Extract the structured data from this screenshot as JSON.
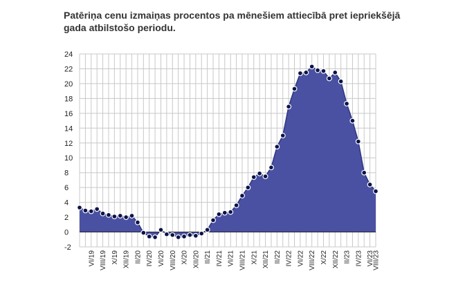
{
  "chart_data": {
    "type": "area",
    "title": "Patēriņa cenu izmaiņas procentos pa mēnešiem attiecībā pret iepriekšējā gada atbilstošo periodu.",
    "xlabel": "",
    "ylabel": "",
    "ylim": [
      -2,
      24
    ],
    "yticks": [
      24,
      22,
      20,
      18,
      16,
      14,
      12,
      10,
      8,
      6,
      4,
      2,
      0,
      -2
    ],
    "grid": true,
    "colors": {
      "fill": "#4a51a3",
      "line": "#2f3580",
      "marker": "#0b1448",
      "marker_edge": "#ffffff",
      "grid": "#c8c8c8"
    },
    "x_tick_labels": [
      "VI/19",
      "VIII/19",
      "X/19",
      "XII/19",
      "II/20",
      "IV/20",
      "VI/20",
      "VIII/20",
      "X/20",
      "XII/20",
      "II/21",
      "IV/21",
      "VI/21",
      "VIII/21",
      "X/21",
      "XII/21",
      "II/22",
      "IV/22",
      "VI/22",
      "VIII/22",
      "X/22",
      "XII/22",
      "II/23",
      "IV/23",
      "VI/23",
      "VIII/23"
    ],
    "x_tick_every": 2,
    "values": [
      3.3,
      2.9,
      2.8,
      3.1,
      2.5,
      2.3,
      2.1,
      2.2,
      2.0,
      2.2,
      1.3,
      -0.1,
      -0.6,
      -0.7,
      0.3,
      -0.3,
      -0.4,
      -0.7,
      -0.6,
      -0.4,
      -0.5,
      -0.2,
      0.3,
      1.6,
      2.4,
      2.6,
      2.7,
      3.6,
      4.9,
      6.0,
      7.4,
      7.9,
      7.5,
      8.7,
      11.5,
      13.0,
      16.9,
      19.3,
      21.4,
      21.5,
      22.3,
      21.8,
      21.7,
      20.7,
      21.5,
      20.3,
      17.3,
      15.0,
      12.2,
      8.0,
      6.4,
      5.5
    ]
  }
}
